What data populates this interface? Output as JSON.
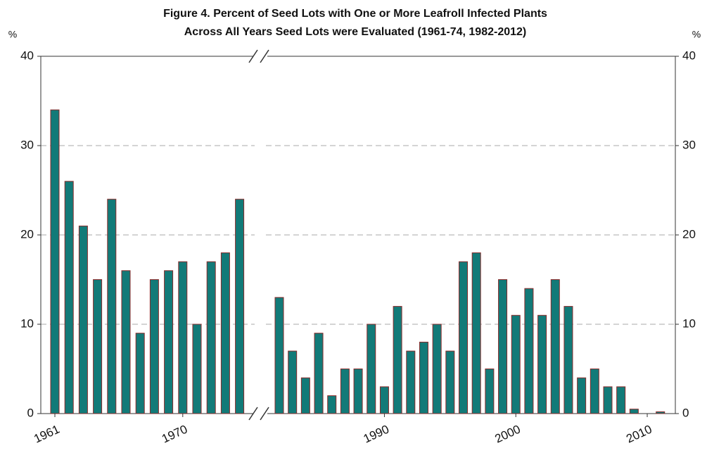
{
  "chart_data": {
    "type": "bar",
    "title": "Figure 4. Percent of Seed Lots with One or More Leafroll Infected Plants",
    "subtitle": "Across All Years Seed Lots were Evaluated (1961-74, 1982-2012)",
    "ylabel": "%",
    "y2label": "%",
    "x": [
      1961,
      1962,
      1963,
      1964,
      1965,
      1966,
      1967,
      1968,
      1969,
      1970,
      1971,
      1972,
      1973,
      1974,
      1982,
      1983,
      1984,
      1985,
      1986,
      1987,
      1988,
      1989,
      1990,
      1991,
      1992,
      1993,
      1994,
      1995,
      1996,
      1997,
      1998,
      1999,
      2000,
      2001,
      2002,
      2003,
      2004,
      2005,
      2006,
      2007,
      2008,
      2009,
      2010,
      2011,
      2012
    ],
    "values": [
      34,
      26,
      21,
      15,
      24,
      16,
      9,
      15,
      16,
      17,
      10,
      17,
      18,
      24,
      13,
      7,
      4,
      9,
      2,
      5,
      5,
      10,
      3,
      12,
      7,
      8,
      10,
      7,
      17,
      18,
      5,
      15,
      11,
      14,
      11,
      15,
      12,
      4,
      5,
      3,
      3,
      0.5,
      0,
      0.2,
      0
    ],
    "color": "#127a78",
    "edge_color": "#8a2a2a",
    "xticks": [
      1961,
      1970,
      1990,
      2000,
      2010
    ],
    "ylim": [
      0,
      40
    ],
    "yticks": [
      0,
      10,
      20,
      30,
      40
    ],
    "grid": true
  }
}
